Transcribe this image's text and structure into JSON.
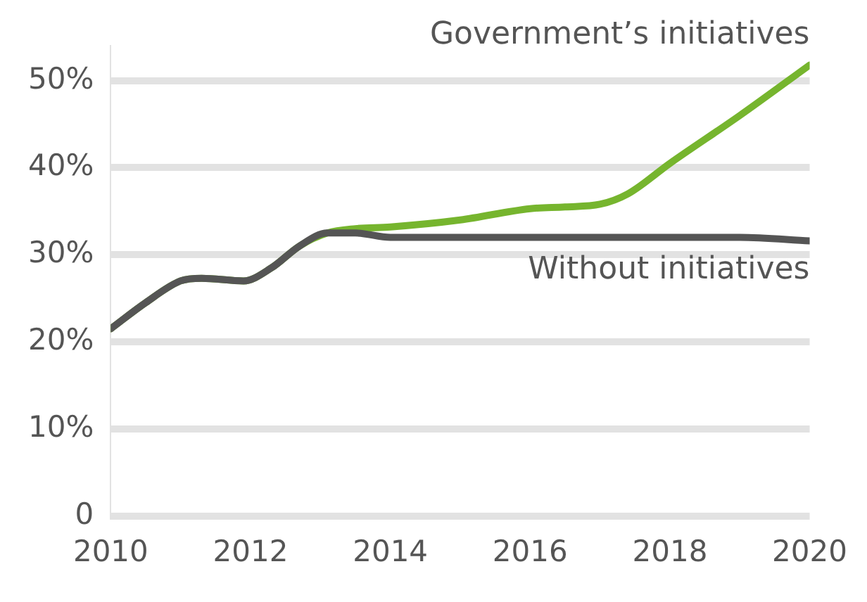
{
  "chart_data": {
    "type": "line",
    "xlim": [
      2010,
      2020
    ],
    "xticks": [
      2010,
      2012,
      2014,
      2016,
      2018,
      2020
    ],
    "ylim": [
      0,
      54
    ],
    "yticks": [
      {
        "value": 0,
        "label": "0"
      },
      {
        "value": 10,
        "label": "10%"
      },
      {
        "value": 20,
        "label": "20%"
      },
      {
        "value": 30,
        "label": "30%"
      },
      {
        "value": 40,
        "label": "40%"
      },
      {
        "value": 50,
        "label": "50%"
      }
    ],
    "grid": "y",
    "legend": false,
    "marker": "none",
    "line_style": "solid",
    "series": [
      {
        "name": "Government’s initiatives",
        "color": "#76b52e",
        "x": [
          2010,
          2010.5,
          2011,
          2011.3,
          2011.9,
          2012.3,
          2012.7,
          2013.1,
          2013.5,
          2014,
          2015,
          2016,
          2016.5,
          2017,
          2017.4,
          2018,
          2019,
          2020
        ],
        "values": [
          21.5,
          24.5,
          27,
          27.3,
          27,
          28.5,
          31,
          32.5,
          33,
          33.2,
          34,
          35.3,
          35.5,
          35.8,
          37,
          40.5,
          46,
          51.8
        ]
      },
      {
        "name": "Without initiatives",
        "color": "#555555",
        "x": [
          2010,
          2010.5,
          2011,
          2011.3,
          2011.9,
          2012.3,
          2012.7,
          2013.1,
          2013.5,
          2014,
          2016,
          2018,
          2019,
          2020
        ],
        "values": [
          21.5,
          24.5,
          27,
          27.3,
          27,
          28.5,
          31,
          32.5,
          32.5,
          32,
          32,
          32,
          32,
          31.6
        ]
      }
    ]
  }
}
